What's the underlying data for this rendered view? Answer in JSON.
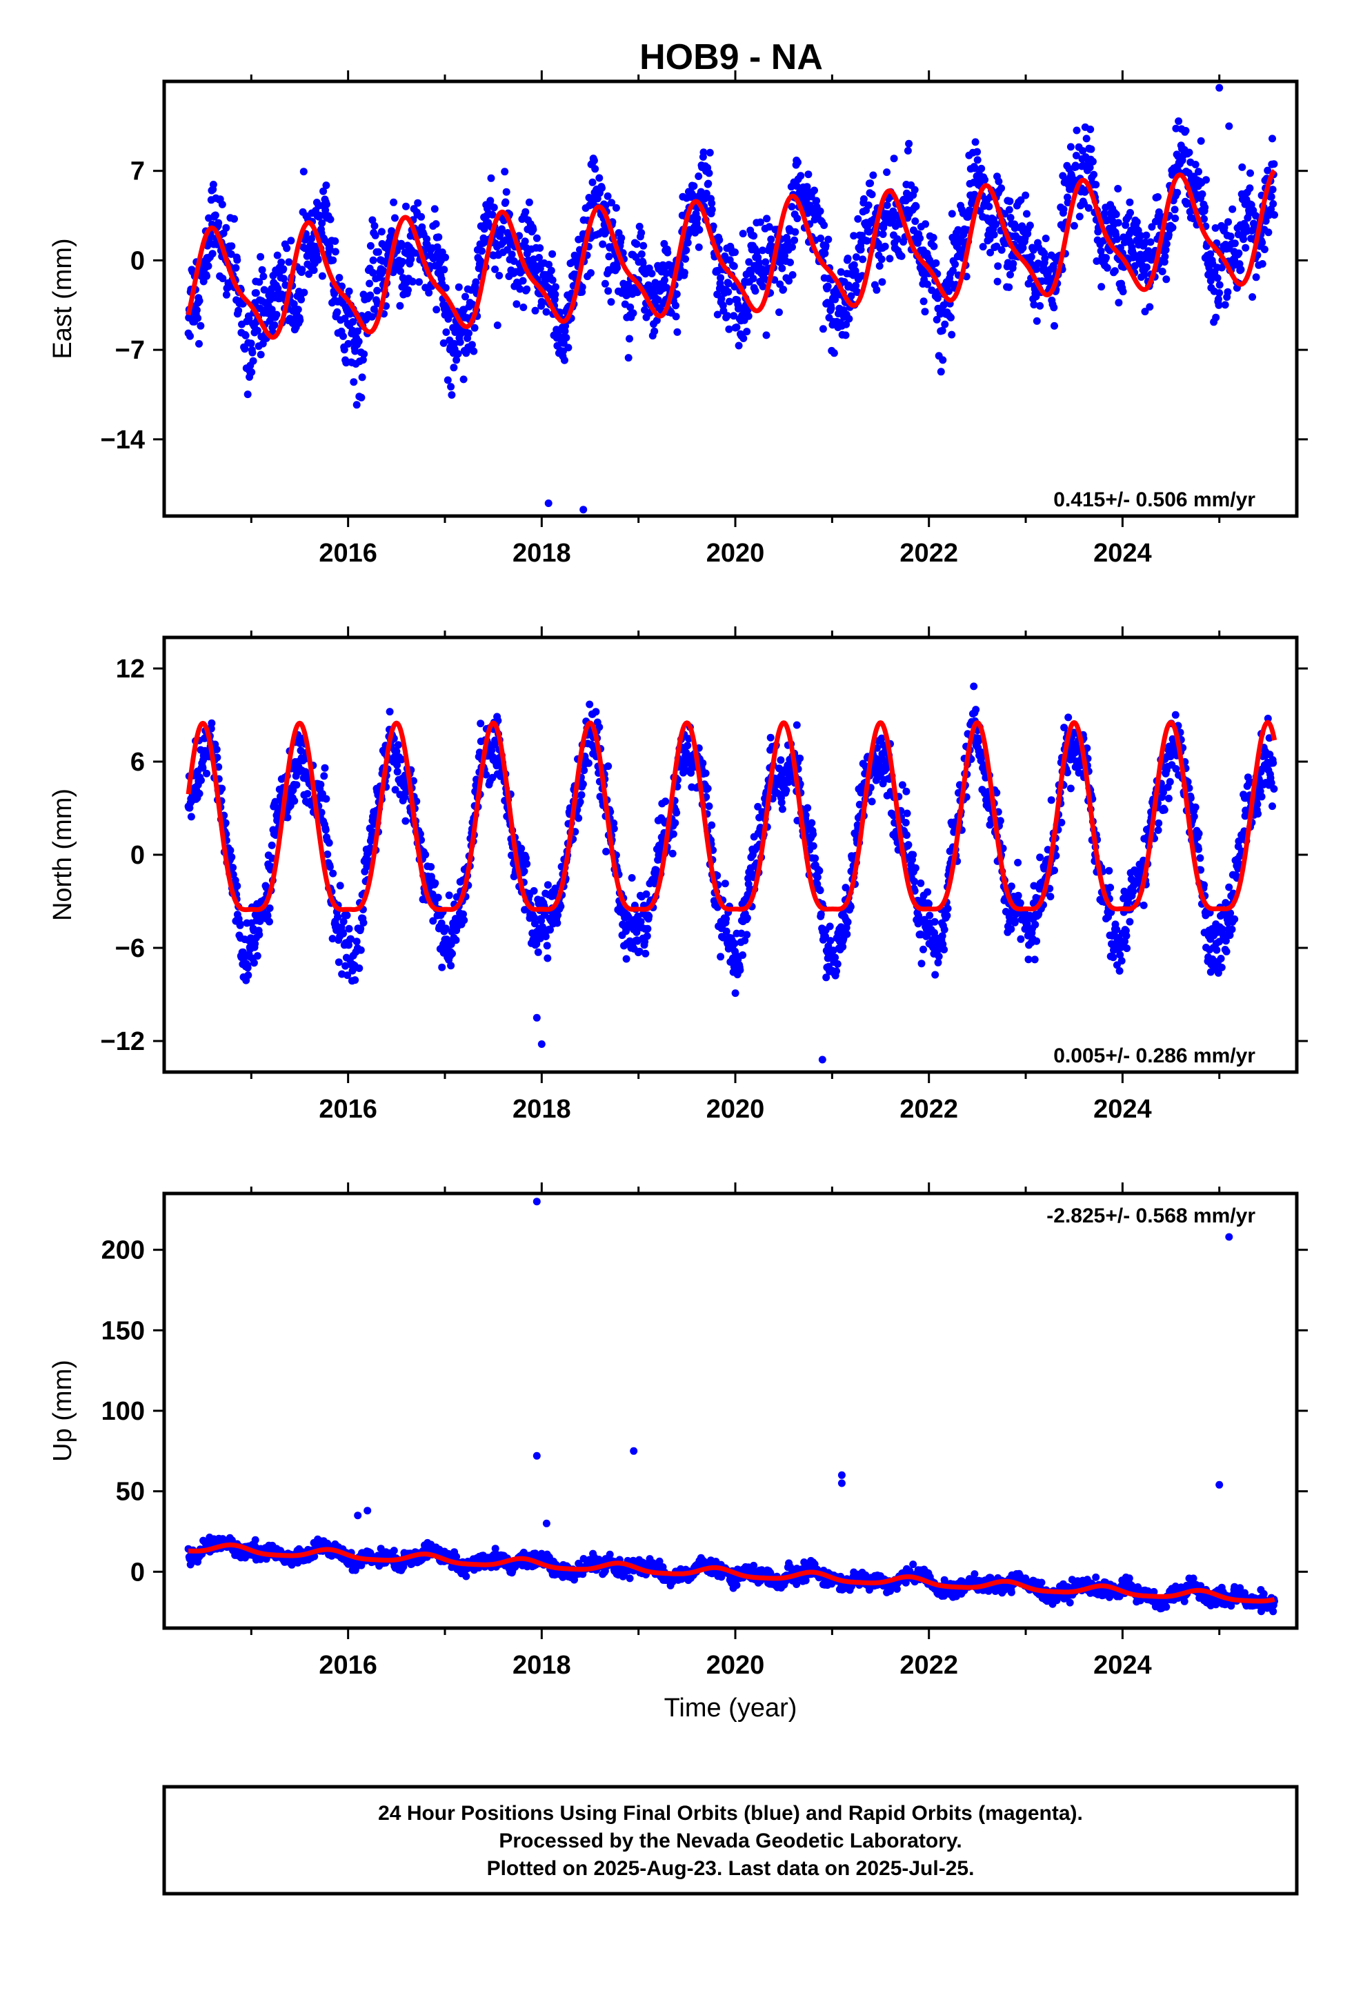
{
  "title": "HOB9 - NA",
  "colors": {
    "final_orbits": "#0000ff",
    "rapid_orbits": "#ff00ff",
    "model": "#ff0000",
    "frame": "#000000"
  },
  "footer": {
    "line1": "24 Hour Positions Using Final Orbits (blue) and Rapid Orbits (magenta).",
    "line2": "Processed by the Nevada Geodetic Laboratory.",
    "line3": "Plotted on 2025-Aug-23. Last data on 2025-Jul-25."
  },
  "chart_data": [
    {
      "type": "scatter",
      "ylabel": "East (mm)",
      "xlabel": "",
      "rate_label": "0.415+/- 0.506 mm/yr",
      "xlim": [
        2014.1,
        2025.8
      ],
      "ylim": [
        -20,
        14
      ],
      "xticks": [
        2016,
        2018,
        2020,
        2022,
        2024
      ],
      "xtick_labels": [
        "2016",
        "2018",
        "2020",
        "2022",
        "2024"
      ],
      "yticks": [
        7,
        0,
        -7,
        -14
      ],
      "ytick_labels": [
        "7",
        "0",
        "-7",
        "-14"
      ],
      "grid": false,
      "series": [
        {
          "kind": "observations",
          "color": "#0000ff",
          "x_range": [
            2014.35,
            2025.57
          ],
          "trend": {
            "slope": 0.5,
            "intercept_year": 2019.95,
            "intercept": 0.3
          },
          "annual_amplitude": 3.2,
          "annual_peak_year_fraction": 0.62,
          "scatter": 3.0,
          "outliers": [
            [
              2018.07,
              -19.0
            ],
            [
              2018.43,
              -19.5
            ],
            [
              2025.0,
              13.5
            ],
            [
              2025.1,
              10.5
            ]
          ]
        },
        {
          "kind": "model",
          "color": "#ff0000",
          "x_range": [
            2014.35,
            2025.57
          ],
          "trend": {
            "slope": 0.415,
            "intercept_year": 2019.95,
            "intercept": 0.0
          },
          "annual_amplitude": 3.9,
          "annual_peak_year_fraction": 0.64,
          "semiannual_amplitude": 1.2,
          "semiannual_peak_year_fraction": 0.55
        }
      ]
    },
    {
      "type": "scatter",
      "ylabel": "North (mm)",
      "xlabel": "",
      "rate_label": "0.005+/- 0.286 mm/yr",
      "xlim": [
        2014.1,
        2025.8
      ],
      "ylim": [
        -14,
        14
      ],
      "xticks": [
        2016,
        2018,
        2020,
        2022,
        2024
      ],
      "xtick_labels": [
        "2016",
        "2018",
        "2020",
        "2022",
        "2024"
      ],
      "yticks": [
        12,
        6,
        0,
        -6,
        -12
      ],
      "ytick_labels": [
        "12",
        "6",
        "0",
        "-6",
        "-12"
      ],
      "grid": false,
      "series": [
        {
          "kind": "observations",
          "color": "#0000ff",
          "x_range": [
            2014.35,
            2025.57
          ],
          "trend": {
            "slope": 0.0,
            "intercept_year": 2019.95,
            "intercept": 0.5
          },
          "annual_amplitude": 6.0,
          "annual_peak_year_fraction": 0.5,
          "scatter": 1.8,
          "outliers": [
            [
              2017.95,
              -10.5
            ],
            [
              2018.0,
              -12.2
            ],
            [
              2020.9,
              -13.2
            ]
          ]
        },
        {
          "kind": "model",
          "color": "#ff0000",
          "x_range": [
            2014.35,
            2025.57
          ],
          "trend": {
            "slope": 0.005,
            "intercept_year": 2019.95,
            "intercept": 0.9
          },
          "annual_amplitude": 6.0,
          "annual_peak_year_fraction": 0.5,
          "semiannual_amplitude": 1.6,
          "semiannual_peak_year_fraction": 0.5
        }
      ]
    },
    {
      "type": "scatter",
      "ylabel": "Up (mm)",
      "xlabel": "Time (year)",
      "rate_label": "-2.825+/- 0.568 mm/yr",
      "xlim": [
        2014.1,
        2025.8
      ],
      "ylim": [
        -35,
        235
      ],
      "xticks": [
        2016,
        2018,
        2020,
        2022,
        2024
      ],
      "xtick_labels": [
        "2016",
        "2018",
        "2020",
        "2022",
        "2024"
      ],
      "yticks": [
        200,
        150,
        100,
        50,
        0
      ],
      "ytick_labels": [
        "200",
        "150",
        "100",
        "50",
        "0"
      ],
      "grid": false,
      "series": [
        {
          "kind": "observations",
          "color": "#0000ff",
          "x_range": [
            2014.35,
            2025.57
          ],
          "trend": {
            "slope": -2.825,
            "intercept_year": 2019.95,
            "intercept": -1.0
          },
          "annual_amplitude": 2.5,
          "annual_peak_year_fraction": 0.8,
          "scatter": 4.0,
          "outliers": [
            [
              2017.95,
              230
            ],
            [
              2017.95,
              72
            ],
            [
              2018.05,
              30
            ],
            [
              2018.95,
              75
            ],
            [
              2021.1,
              60
            ],
            [
              2021.1,
              55
            ],
            [
              2016.1,
              35
            ],
            [
              2016.2,
              38
            ],
            [
              2025.0,
              54
            ],
            [
              2025.1,
              208
            ]
          ]
        },
        {
          "kind": "model",
          "color": "#ff0000",
          "x_range": [
            2014.35,
            2025.57
          ],
          "trend": {
            "slope": -2.825,
            "intercept_year": 2019.95,
            "intercept": -1.0
          },
          "annual_amplitude": 2.5,
          "annual_peak_year_fraction": 0.8,
          "semiannual_amplitude": 0.6,
          "semiannual_peak_year_fraction": 0.3
        }
      ]
    }
  ]
}
